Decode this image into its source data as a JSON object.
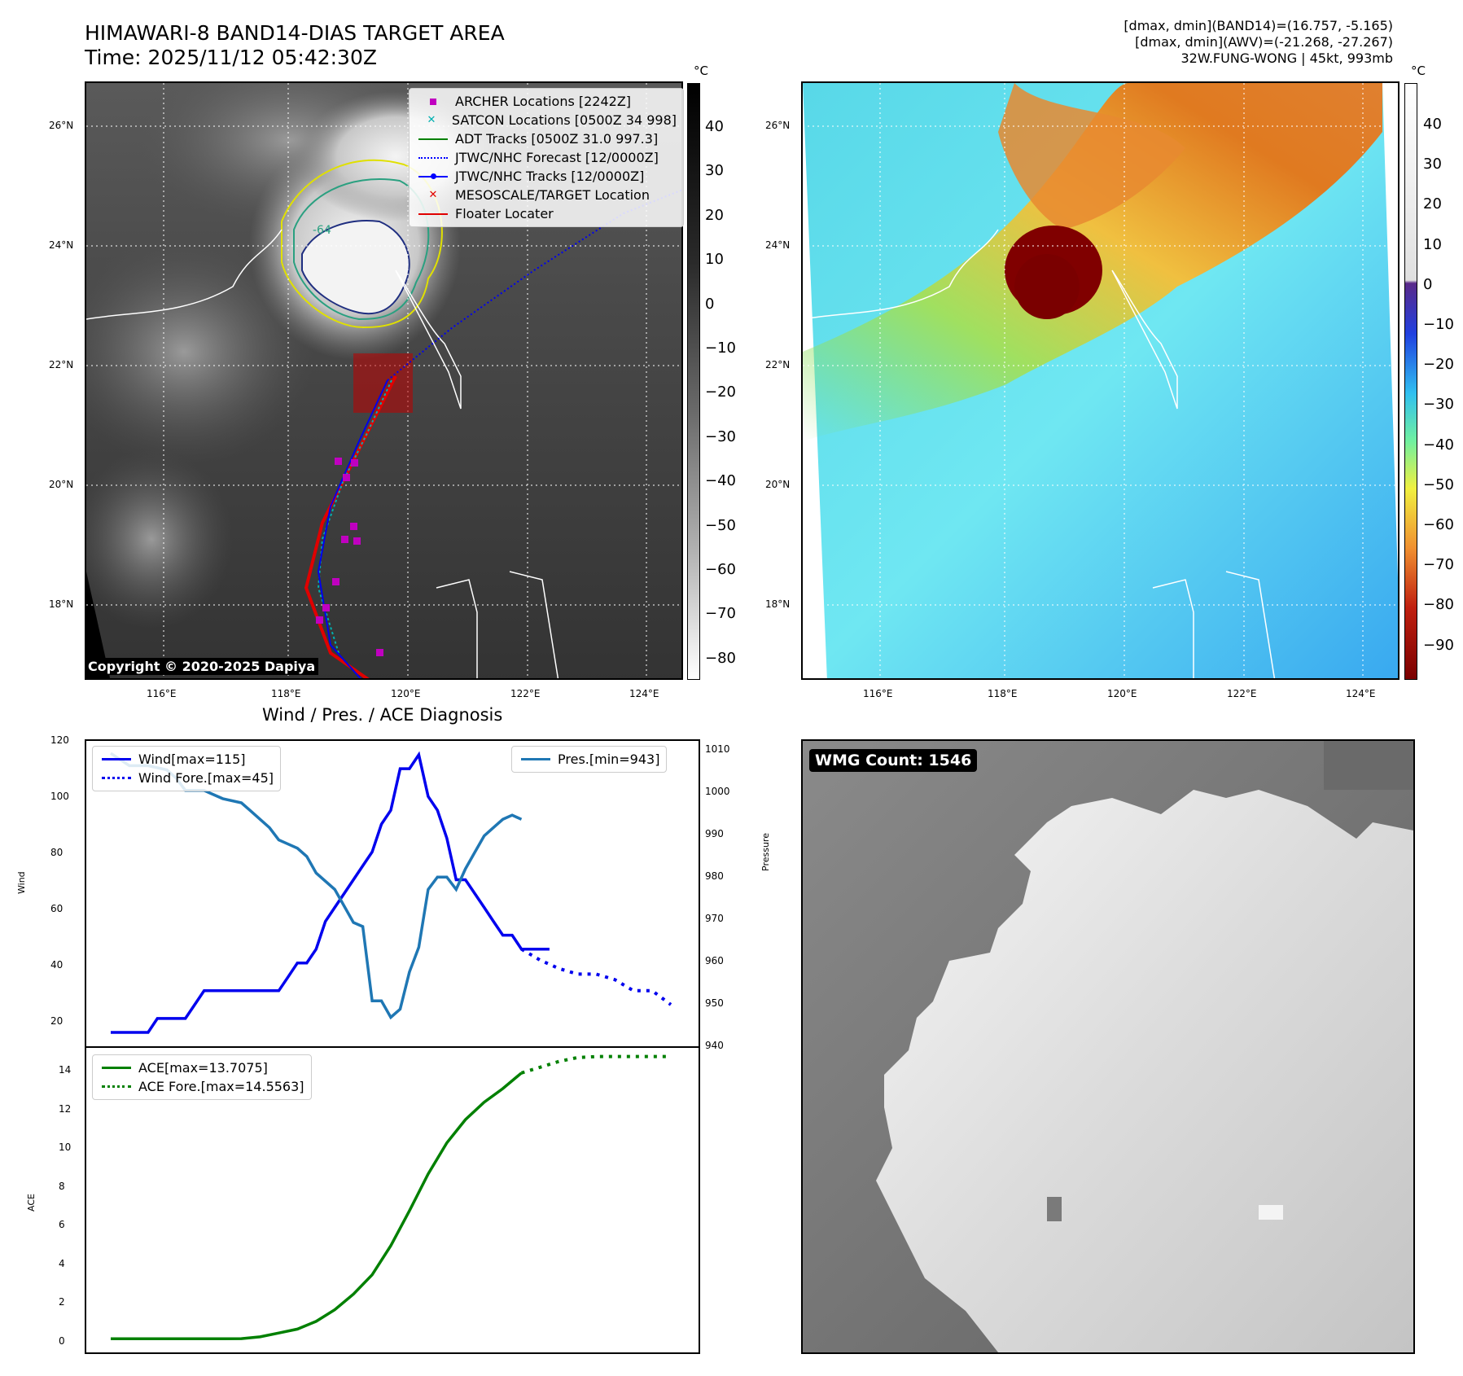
{
  "header": {
    "title_line1": "HIMAWARI-8 BAND14-DIAS TARGET AREA",
    "title_line2": "Time: 2025/11/12 05:42:30Z",
    "info_line1": "[dmax, dmin](BAND14)=(16.757, -5.165)",
    "info_line2": "[dmax, dmin](AWV)=(-21.268, -27.267)",
    "info_line3": "32W.FUNG-WONG | 45kt, 993mb"
  },
  "colorbar_unit": "°C",
  "ir_map": {
    "colorbar_ticks": [
      "40",
      "30",
      "20",
      "10",
      "0",
      "−10",
      "−20",
      "−30",
      "−40",
      "−50",
      "−60",
      "−70",
      "−80"
    ],
    "lat_ticks": [
      "26°N",
      "24°N",
      "22°N",
      "20°N",
      "18°N"
    ],
    "lon_ticks": [
      "116°E",
      "118°E",
      "120°E",
      "122°E",
      "124°E"
    ],
    "copyright": "Copyright © 2020-2025 Dapiya",
    "contour_label": "-64",
    "legend": [
      {
        "label": "ARCHER Locations [2242Z]",
        "symbol": "square",
        "color": "#c000c0"
      },
      {
        "label": "SATCON Locations [0500Z 34 998]",
        "symbol": "x",
        "color": "#00b0b0"
      },
      {
        "label": "ADT Tracks [0500Z 31.0 997.3]",
        "symbol": "line",
        "color": "#008000"
      },
      {
        "label": "JTWC/NHC Forecast [12/0000Z]",
        "symbol": "dotted",
        "color": "#0000ff"
      },
      {
        "label": "JTWC/NHC Tracks [12/0000Z]",
        "symbol": "linedot",
        "color": "#0000ff"
      },
      {
        "label": "MESOSCALE/TARGET Location",
        "symbol": "x",
        "color": "#e00000"
      },
      {
        "label": "Floater Locater",
        "symbol": "line",
        "color": "#e00000"
      }
    ]
  },
  "awv_map": {
    "colorbar_ticks": [
      "40",
      "30",
      "20",
      "10",
      "0",
      "−10",
      "−20",
      "−30",
      "−40",
      "−50",
      "−60",
      "−70",
      "−80",
      "−90"
    ],
    "lat_ticks": [
      "26°N",
      "24°N",
      "22°N",
      "20°N",
      "18°N"
    ],
    "lon_ticks": [
      "116°E",
      "118°E",
      "120°E",
      "122°E",
      "124°E"
    ]
  },
  "wind_panel": {
    "title": "Wind / Pres. / ACE Diagnosis",
    "ylabel_left": "Wind",
    "ylabel_right": "Pressure",
    "wind_ticks": [
      "120",
      "100",
      "80",
      "60",
      "40",
      "20"
    ],
    "pres_ticks": [
      "1010",
      "1000",
      "990",
      "980",
      "970",
      "960",
      "950",
      "940"
    ],
    "legend_left": [
      "Wind[max=115]",
      "Wind Fore.[max=45]"
    ],
    "legend_right": [
      "Pres.[min=943]"
    ]
  },
  "ace_panel": {
    "ylabel": "ACE",
    "ticks": [
      "14",
      "12",
      "10",
      "8",
      "6",
      "4",
      "2",
      "0"
    ],
    "legend": [
      "ACE[max=13.7075]",
      "ACE Fore.[max=14.5563]"
    ]
  },
  "wmg_panel": {
    "label": "WMG Count: 1546"
  },
  "chart_data": [
    {
      "type": "line",
      "title": "Wind / Pres. / ACE Diagnosis",
      "ylabel": "Wind",
      "ylim": [
        10,
        120
      ],
      "series": [
        {
          "name": "Wind[max=115]",
          "color": "#0000ee",
          "x": [
            0,
            1,
            2,
            3,
            4,
            5,
            6,
            7,
            8,
            9,
            10,
            11,
            12,
            13,
            14,
            15,
            16,
            17,
            18,
            19,
            20,
            21,
            22,
            23,
            24,
            25,
            26,
            27,
            28,
            29,
            30,
            31,
            32,
            33,
            34,
            35,
            36,
            37,
            38,
            39,
            40,
            41,
            42,
            43,
            44,
            45,
            46,
            47
          ],
          "values": [
            15,
            15,
            15,
            15,
            15,
            20,
            20,
            20,
            20,
            25,
            30,
            30,
            30,
            30,
            30,
            30,
            30,
            30,
            30,
            35,
            40,
            40,
            45,
            55,
            60,
            65,
            70,
            75,
            80,
            90,
            95,
            110,
            110,
            115,
            100,
            95,
            85,
            70,
            70,
            65,
            60,
            55,
            50,
            50,
            45,
            45,
            45,
            45
          ]
        },
        {
          "name": "Wind Fore.[max=45]",
          "color": "#0000ee",
          "dashed": true,
          "x": [
            44,
            46,
            48,
            50,
            52,
            54,
            56,
            58,
            60
          ],
          "values": [
            45,
            41,
            38,
            36,
            36,
            34,
            30,
            30,
            25
          ]
        },
        {
          "name": "Pres.[min=943]",
          "color": "#1f77b4",
          "axis": "right",
          "ylim": [
            938,
            1012
          ],
          "x": [
            0,
            2,
            4,
            6,
            7,
            8,
            10,
            11,
            12,
            14,
            15,
            16,
            17,
            18,
            19,
            20,
            21,
            22,
            24,
            25,
            26,
            27,
            28,
            29,
            30,
            31,
            32,
            33,
            34,
            35,
            36,
            37,
            38,
            39,
            40,
            41,
            42,
            43,
            44
          ],
          "values": [
            1009,
            1006,
            1006,
            1005,
            1003,
            1000,
            1000,
            999,
            998,
            997,
            995,
            993,
            991,
            988,
            987,
            986,
            984,
            980,
            976,
            972,
            968,
            967,
            949,
            949,
            945,
            947,
            956,
            962,
            976,
            979,
            979,
            976,
            981,
            985,
            989,
            991,
            993,
            994,
            993
          ]
        }
      ]
    },
    {
      "type": "line",
      "ylabel": "ACE",
      "ylim": [
        -0.7,
        15.0
      ],
      "series": [
        {
          "name": "ACE[max=13.7075]",
          "color": "#008000",
          "x": [
            0,
            2,
            4,
            6,
            8,
            10,
            12,
            14,
            16,
            18,
            20,
            22,
            24,
            26,
            28,
            30,
            32,
            34,
            36,
            38,
            40,
            42,
            44
          ],
          "values": [
            0,
            0,
            0,
            0,
            0,
            0,
            0,
            0.01,
            0.1,
            0.3,
            0.5,
            0.9,
            1.5,
            2.3,
            3.3,
            4.8,
            6.6,
            8.5,
            10.1,
            11.3,
            12.2,
            12.9,
            13.7075
          ]
        },
        {
          "name": "ACE Fore.[max=14.5563]",
          "color": "#008000",
          "dashed": true,
          "x": [
            44,
            46,
            48,
            50,
            52,
            54,
            56,
            58,
            60
          ],
          "values": [
            13.7075,
            14.0,
            14.3,
            14.5,
            14.55,
            14.5563,
            14.5563,
            14.5563,
            14.5563
          ]
        }
      ]
    }
  ]
}
